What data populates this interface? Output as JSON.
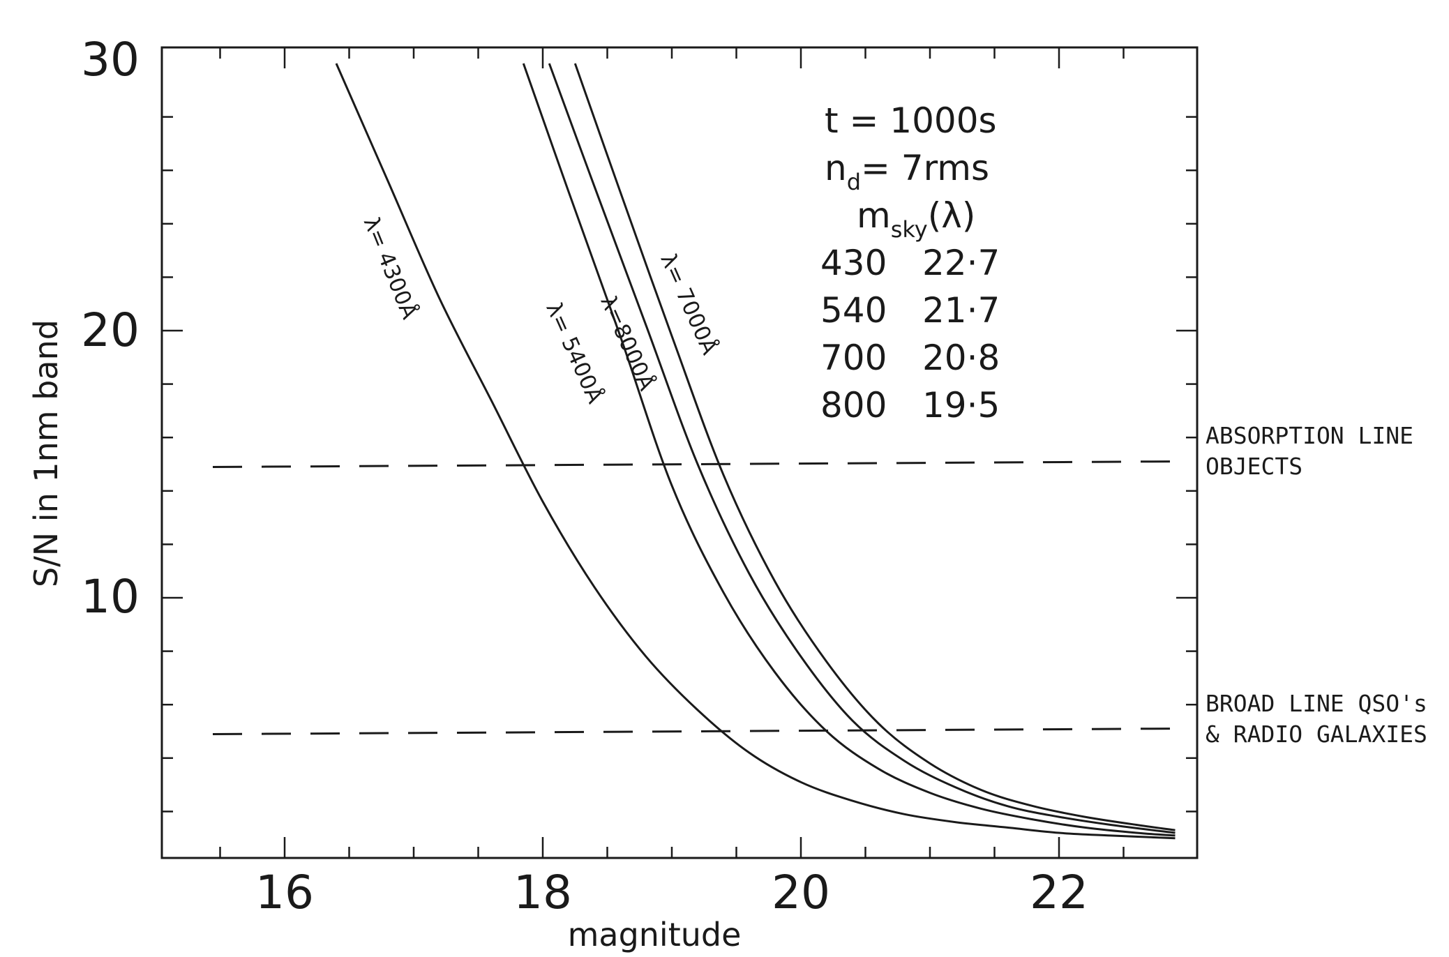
{
  "chart_data": {
    "type": "line",
    "xlabel": "magnitude",
    "ylabel": "S/N in 1nm band",
    "xlim": [
      15.0,
      23.0
    ],
    "ylim": [
      1.0,
      30.0
    ],
    "xticks": [
      "16",
      "18",
      "20",
      "22"
    ],
    "yticks": [
      "10",
      "20",
      "30"
    ],
    "grid": false,
    "series": [
      {
        "name": "λ= 4300Å",
        "x": [
          16.4,
          16.8,
          17.2,
          17.6,
          18.0,
          18.4,
          18.8,
          19.2,
          19.6,
          20.0,
          20.4,
          20.8,
          21.2,
          21.6,
          22.0,
          22.4,
          22.9
        ],
        "y": [
          30.0,
          25.6,
          21.2,
          17.4,
          13.6,
          10.4,
          7.8,
          5.8,
          4.2,
          3.1,
          2.4,
          1.9,
          1.6,
          1.4,
          1.2,
          1.1,
          1.0
        ]
      },
      {
        "name": "λ= 5400Å",
        "x": [
          17.85,
          18.2,
          18.6,
          19.0,
          19.4,
          19.8,
          20.2,
          20.6,
          21.0,
          21.4,
          21.8,
          22.2,
          22.6,
          22.9
        ],
        "y": [
          30.0,
          25.2,
          19.8,
          14.2,
          10.2,
          7.2,
          5.0,
          3.6,
          2.7,
          2.1,
          1.7,
          1.4,
          1.2,
          1.1
        ]
      },
      {
        "name": "λ=8000Å",
        "x": [
          18.05,
          18.4,
          18.8,
          19.2,
          19.6,
          20.0,
          20.4,
          20.8,
          21.2,
          21.6,
          22.0,
          22.4,
          22.9
        ],
        "y": [
          30.0,
          25.4,
          20.2,
          15.0,
          10.9,
          7.8,
          5.4,
          3.9,
          2.9,
          2.2,
          1.8,
          1.5,
          1.2
        ]
      },
      {
        "name": "λ= 7000Å",
        "x": [
          18.25,
          18.6,
          19.0,
          19.4,
          19.8,
          20.2,
          20.6,
          21.0,
          21.4,
          21.8,
          22.2,
          22.6,
          22.9
        ],
        "y": [
          30.0,
          25.2,
          19.8,
          14.6,
          10.6,
          7.6,
          5.3,
          3.8,
          2.8,
          2.2,
          1.8,
          1.5,
          1.3
        ]
      }
    ],
    "reference_lines": [
      {
        "y": 15.0,
        "style": "dashed",
        "label_lines": [
          "ABSORPTION LINE",
          "OBJECTS"
        ]
      },
      {
        "y": 5.0,
        "style": "dashed",
        "label_lines": [
          "BROAD LINE QSO's",
          "& RADIO GALAXIES"
        ]
      }
    ],
    "legend_box": {
      "t_line": "t = 1000s",
      "nd_main": "n",
      "nd_sub": "d",
      "nd_rest": "= 7rms",
      "msky_main": "m",
      "msky_sub": "sky",
      "msky_rest": "(λ)",
      "rows": [
        {
          "lambda": "430",
          "m": "22·7"
        },
        {
          "lambda": "540",
          "m": "21·7"
        },
        {
          "lambda": "700",
          "m": "20·8"
        },
        {
          "lambda": "800",
          "m": "19·5"
        }
      ]
    }
  }
}
